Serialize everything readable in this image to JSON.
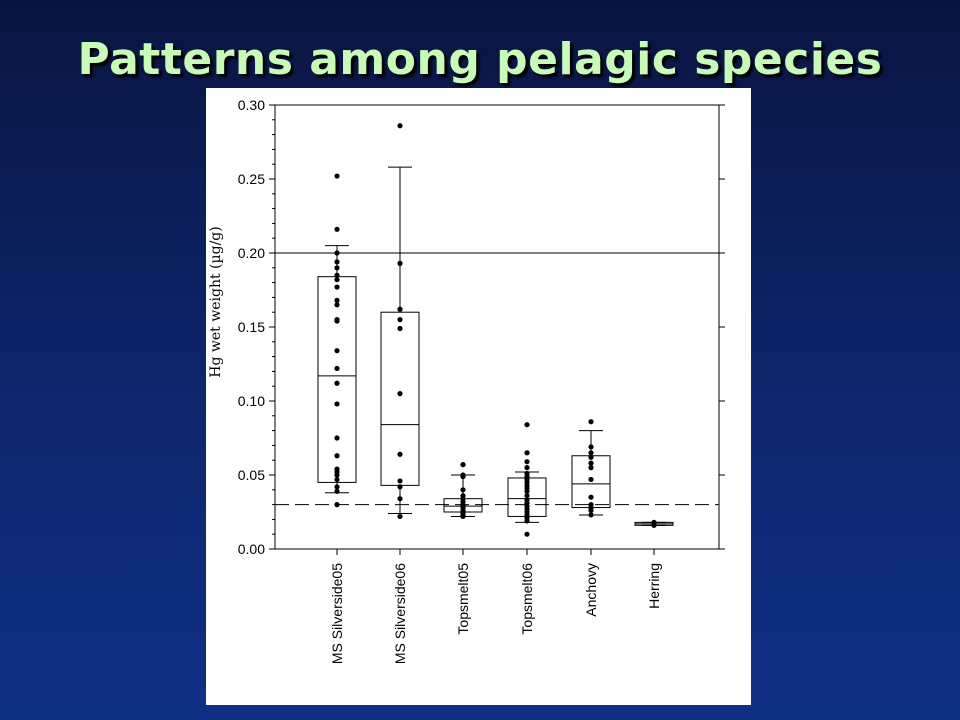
{
  "slide": {
    "title": "Patterns among pelagic species"
  },
  "colors": {
    "background": "#0d2466",
    "title": "#c8fbb8",
    "panel": "#ffffff",
    "ink": "#000000"
  },
  "chart_data": {
    "type": "box",
    "title": "",
    "xlabel": "",
    "ylabel": "Hg wet weight (µg/g)",
    "ylim": [
      0,
      0.3
    ],
    "yticks": [
      "0.00",
      "0.05",
      "0.10",
      "0.15",
      "0.20",
      "0.25",
      "0.30"
    ],
    "ytick_values": [
      0,
      0.05,
      0.1,
      0.15,
      0.2,
      0.25,
      0.3
    ],
    "reference_lines": [
      {
        "y": 0.2,
        "style": "solid"
      },
      {
        "y": 0.03,
        "style": "dashed"
      }
    ],
    "categories": [
      "MS Silverside05",
      "MS Silverside06",
      "Topsmelt05",
      "Topsmelt06",
      "Anchovy",
      "Herring"
    ],
    "boxes": [
      {
        "category": "MS Silverside05",
        "whisker_low": 0.038,
        "q1": 0.045,
        "median": 0.117,
        "q3": 0.184,
        "whisker_high": 0.205,
        "points": [
          0.252,
          0.216,
          0.2,
          0.194,
          0.19,
          0.185,
          0.182,
          0.177,
          0.168,
          0.165,
          0.155,
          0.154,
          0.134,
          0.122,
          0.112,
          0.098,
          0.075,
          0.063,
          0.054,
          0.052,
          0.05,
          0.047,
          0.042,
          0.039,
          0.03
        ]
      },
      {
        "category": "MS Silverside06",
        "whisker_low": 0.024,
        "q1": 0.043,
        "median": 0.084,
        "q3": 0.16,
        "whisker_high": 0.258,
        "points": [
          0.286,
          0.193,
          0.162,
          0.155,
          0.149,
          0.105,
          0.064,
          0.046,
          0.042,
          0.034,
          0.022
        ]
      },
      {
        "category": "Topsmelt05",
        "whisker_low": 0.022,
        "q1": 0.025,
        "median": 0.029,
        "q3": 0.034,
        "whisker_high": 0.05,
        "points": [
          0.057,
          0.05,
          0.049,
          0.04,
          0.036,
          0.034,
          0.032,
          0.03,
          0.028,
          0.026,
          0.025,
          0.024,
          0.023,
          0.022
        ]
      },
      {
        "category": "Topsmelt06",
        "whisker_low": 0.018,
        "q1": 0.022,
        "median": 0.034,
        "q3": 0.048,
        "whisker_high": 0.052,
        "points": [
          0.084,
          0.065,
          0.059,
          0.055,
          0.051,
          0.049,
          0.047,
          0.045,
          0.043,
          0.041,
          0.039,
          0.036,
          0.033,
          0.031,
          0.029,
          0.027,
          0.025,
          0.023,
          0.021,
          0.019,
          0.01
        ]
      },
      {
        "category": "Anchovy",
        "whisker_low": 0.023,
        "q1": 0.028,
        "median": 0.044,
        "q3": 0.063,
        "whisker_high": 0.08,
        "points": [
          0.086,
          0.069,
          0.065,
          0.062,
          0.058,
          0.055,
          0.047,
          0.035,
          0.03,
          0.028,
          0.026,
          0.023
        ]
      },
      {
        "category": "Herring",
        "whisker_low": 0.016,
        "q1": 0.016,
        "median": 0.017,
        "q3": 0.018,
        "whisker_high": 0.018,
        "points": [
          0.018,
          0.016
        ]
      }
    ]
  }
}
